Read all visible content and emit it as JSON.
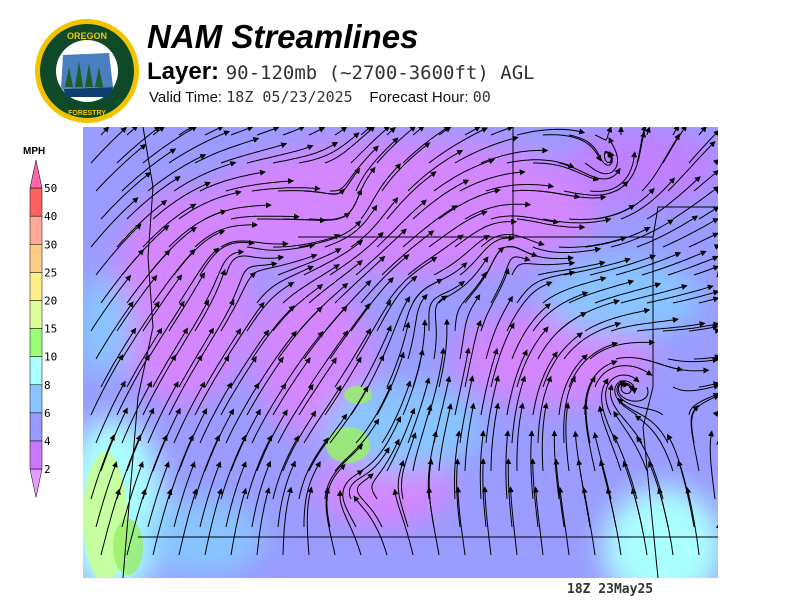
{
  "logo": {
    "text_top": "OREGON",
    "text_bottom": "DEPARTMENT OF FORESTRY"
  },
  "header": {
    "title": "NAM Streamlines",
    "layer_label": "Layer:",
    "layer_value": "90-120mb (~2700-3600ft) AGL",
    "valid_label": "Valid Time:",
    "valid_value": "18Z 05/23/2025",
    "forecast_label": "Forecast Hour:",
    "forecast_value": "00"
  },
  "legend": {
    "unit": "MPH",
    "ticks": [
      "50",
      "40",
      "30",
      "25",
      "20",
      "15",
      "10",
      "8",
      "6",
      "4",
      "2"
    ],
    "colors": [
      "#ff66aa",
      "#ff6060",
      "#ffaa99",
      "#ffcc88",
      "#ffee88",
      "#ddff99",
      "#99ff77",
      "#aaffff",
      "#88c4ff",
      "#9999ff",
      "#cc77ff",
      "#e899ff"
    ]
  },
  "map": {
    "timestamp": "18Z 23May25"
  }
}
